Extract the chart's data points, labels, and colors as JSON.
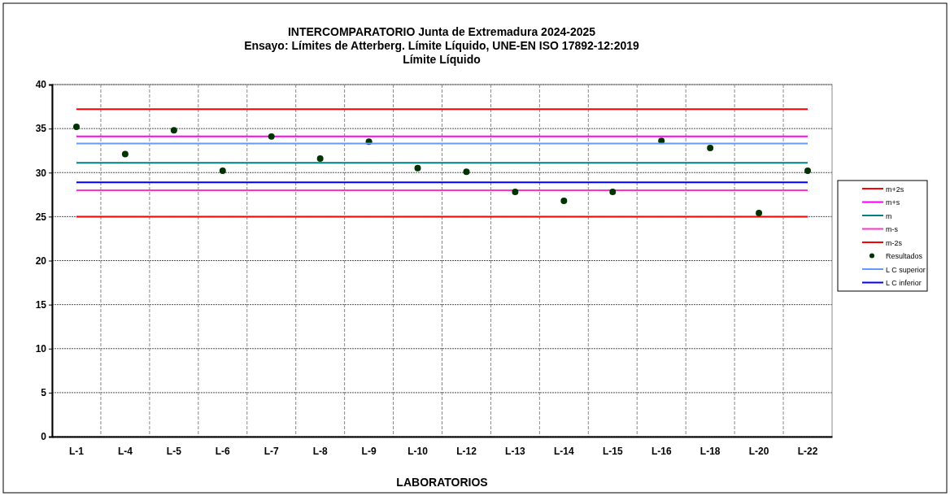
{
  "chart_data": {
    "type": "line",
    "title": "INTERCOMPARATORIO Junta de Extremadura 2024-2025\nEnsayo: Límites de Atterberg. Límite Líquido, UNE-EN ISO 17892-12:2019",
    "subtitle": "Límite Líquido",
    "xlabel": "LABORATORIOS",
    "categories": [
      "L-1",
      "L-4",
      "L-5",
      "L-6",
      "L-7",
      "L-8",
      "L-9",
      "L-10",
      "L-12",
      "L-13",
      "L-14",
      "L-15",
      "L-16",
      "L-18",
      "L-20",
      "L-22"
    ],
    "series": [
      {
        "name": "m+2s",
        "color": "#ff0000",
        "values": [
          37.2,
          37.2,
          37.2,
          37.2,
          37.2,
          37.2,
          37.2,
          37.2,
          37.2,
          37.2,
          37.2,
          37.2,
          37.2,
          37.2,
          37.2,
          37.2
        ]
      },
      {
        "name": "m+s",
        "color": "#ff00ff",
        "values": [
          34.1,
          34.1,
          34.1,
          34.1,
          34.1,
          34.1,
          34.1,
          34.1,
          34.1,
          34.1,
          34.1,
          34.1,
          34.1,
          34.1,
          34.1,
          34.1
        ]
      },
      {
        "name": "m",
        "color": "#008080",
        "values": [
          31.1,
          31.1,
          31.1,
          31.1,
          31.1,
          31.1,
          31.1,
          31.1,
          31.1,
          31.1,
          31.1,
          31.1,
          31.1,
          31.1,
          31.1,
          31.1
        ]
      },
      {
        "name": "m-s",
        "color": "#ff33cc",
        "values": [
          28.0,
          28.0,
          28.0,
          28.0,
          28.0,
          28.0,
          28.0,
          28.0,
          28.0,
          28.0,
          28.0,
          28.0,
          28.0,
          28.0,
          28.0,
          28.0
        ]
      },
      {
        "name": "m-2s",
        "color": "#ff0000",
        "values": [
          25.0,
          25.0,
          25.0,
          25.0,
          25.0,
          25.0,
          25.0,
          25.0,
          25.0,
          25.0,
          25.0,
          25.0,
          25.0,
          25.0,
          25.0,
          25.0
        ]
      },
      {
        "name": "Resultados",
        "type": "scatter",
        "marker": "circle",
        "color": "#003300",
        "values": [
          35.2,
          32.1,
          34.8,
          30.2,
          34.1,
          31.6,
          33.5,
          30.5,
          30.1,
          27.8,
          26.8,
          27.8,
          33.6,
          32.8,
          25.4,
          30.2
        ]
      },
      {
        "name": "L C superior",
        "color": "#6699ff",
        "values": [
          33.3,
          33.3,
          33.3,
          33.3,
          33.3,
          33.3,
          33.3,
          33.3,
          33.3,
          33.3,
          33.3,
          33.3,
          33.3,
          33.3,
          33.3,
          33.3
        ]
      },
      {
        "name": "L C inferior",
        "color": "#0000ff",
        "values": [
          28.9,
          28.9,
          28.9,
          28.9,
          28.9,
          28.9,
          28.9,
          28.9,
          28.9,
          28.9,
          28.9,
          28.9,
          28.9,
          28.9,
          28.9,
          28.9
        ]
      }
    ],
    "ylim": [
      0,
      40
    ],
    "yticks": [
      0,
      5,
      10,
      15,
      20,
      25,
      30,
      35,
      40
    ],
    "grid": true,
    "legend": "right",
    "line_style": "solid"
  }
}
